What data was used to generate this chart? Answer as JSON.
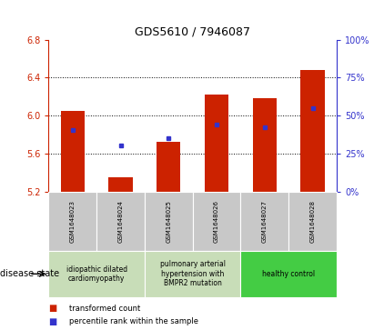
{
  "title": "GDS5610 / 7946087",
  "categories": [
    "GSM1648023",
    "GSM1648024",
    "GSM1648025",
    "GSM1648026",
    "GSM1648027",
    "GSM1648028"
  ],
  "bar_values": [
    6.05,
    5.35,
    5.72,
    6.22,
    6.18,
    6.48
  ],
  "bar_bottom": 5.2,
  "percentile_values": [
    5.85,
    5.68,
    5.76,
    5.9,
    5.88,
    6.08
  ],
  "ylim_left": [
    5.2,
    6.8
  ],
  "ylim_right": [
    0,
    100
  ],
  "yticks_left": [
    5.2,
    5.6,
    6.0,
    6.4,
    6.8
  ],
  "yticks_right": [
    0,
    25,
    50,
    75,
    100
  ],
  "bar_color": "#cc2200",
  "dot_color": "#3333cc",
  "disease_groups": [
    {
      "label": "idiopathic dilated\ncardiomyopathy",
      "start": 0,
      "end": 2,
      "color": "#ccddbb"
    },
    {
      "label": "pulmonary arterial\nhypertension with\nBMPR2 mutation",
      "start": 2,
      "end": 4,
      "color": "#ccddbb"
    },
    {
      "label": "healthy control",
      "start": 4,
      "end": 6,
      "color": "#44cc44"
    }
  ],
  "legend_red_label": "transformed count",
  "legend_blue_label": "percentile rank within the sample",
  "disease_state_label": "disease state",
  "xlabel_bg": "#c8c8c8"
}
